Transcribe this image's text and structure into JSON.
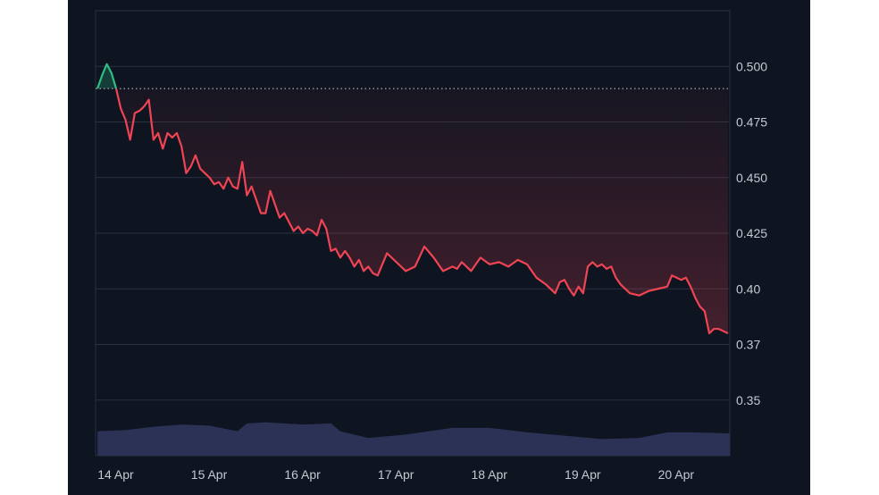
{
  "chart_data": {
    "type": "area",
    "title": "",
    "xlabel": "",
    "ylabel": "",
    "x_tick_labels": [
      "14 Apr",
      "15 Apr",
      "16 Apr",
      "17 Apr",
      "18 Apr",
      "19 Apr",
      "20 Apr"
    ],
    "y_tick_labels": [
      "0.500",
      "0.475",
      "0.450",
      "0.425",
      "0.40",
      "0.37",
      "0.35"
    ],
    "ylim": [
      0.325,
      0.525
    ],
    "x_range_days": [
      13.98,
      20.77
    ],
    "baseline_value": 0.49,
    "colors": {
      "up": "#2ebd85",
      "down": "#ef4454",
      "volume": "#2b3256",
      "grid": "#283142",
      "baseline": "#c9ced8",
      "background": "#0e1420"
    },
    "price_series": {
      "name": "",
      "x_days": [
        14.0,
        14.05,
        14.1,
        14.15,
        14.2,
        14.25,
        14.3,
        14.35,
        14.4,
        14.45,
        14.5,
        14.55,
        14.6,
        14.65,
        14.7,
        14.75,
        14.8,
        14.85,
        14.9,
        14.95,
        15.0,
        15.05,
        15.1,
        15.15,
        15.2,
        15.25,
        15.3,
        15.35,
        15.4,
        15.45,
        15.5,
        15.55,
        15.6,
        15.65,
        15.7,
        15.75,
        15.8,
        15.85,
        15.9,
        15.95,
        16.0,
        16.05,
        16.1,
        16.15,
        16.2,
        16.25,
        16.3,
        16.35,
        16.4,
        16.45,
        16.5,
        16.55,
        16.6,
        16.65,
        16.7,
        16.75,
        16.8,
        16.85,
        16.9,
        16.95,
        17.0,
        17.1,
        17.2,
        17.3,
        17.4,
        17.5,
        17.6,
        17.7,
        17.8,
        17.85,
        17.9,
        18.0,
        18.1,
        18.2,
        18.3,
        18.4,
        18.5,
        18.6,
        18.7,
        18.8,
        18.9,
        18.95,
        19.0,
        19.05,
        19.1,
        19.15,
        19.2,
        19.25,
        19.3,
        19.35,
        19.4,
        19.45,
        19.5,
        19.55,
        19.6,
        19.7,
        19.8,
        19.9,
        20.0,
        20.1,
        20.15,
        20.2,
        20.25,
        20.3,
        20.35,
        20.4,
        20.45,
        20.5,
        20.55,
        20.6,
        20.65,
        20.7,
        20.75
      ],
      "values": [
        0.49,
        0.496,
        0.501,
        0.497,
        0.49,
        0.481,
        0.476,
        0.467,
        0.479,
        0.48,
        0.482,
        0.485,
        0.467,
        0.47,
        0.463,
        0.47,
        0.468,
        0.47,
        0.464,
        0.452,
        0.455,
        0.46,
        0.454,
        0.452,
        0.45,
        0.447,
        0.448,
        0.445,
        0.45,
        0.446,
        0.445,
        0.457,
        0.442,
        0.446,
        0.44,
        0.434,
        0.434,
        0.444,
        0.438,
        0.432,
        0.434,
        0.43,
        0.426,
        0.428,
        0.425,
        0.427,
        0.426,
        0.424,
        0.431,
        0.427,
        0.417,
        0.418,
        0.414,
        0.417,
        0.414,
        0.41,
        0.413,
        0.408,
        0.41,
        0.407,
        0.406,
        0.416,
        0.412,
        0.408,
        0.41,
        0.419,
        0.414,
        0.408,
        0.41,
        0.409,
        0.412,
        0.408,
        0.414,
        0.411,
        0.412,
        0.41,
        0.413,
        0.411,
        0.405,
        0.402,
        0.398,
        0.403,
        0.404,
        0.4,
        0.397,
        0.401,
        0.398,
        0.41,
        0.412,
        0.41,
        0.411,
        0.409,
        0.41,
        0.405,
        0.402,
        0.398,
        0.397,
        0.399,
        0.4,
        0.401,
        0.406,
        0.405,
        0.404,
        0.405,
        0.401,
        0.396,
        0.392,
        0.39,
        0.38,
        0.382,
        0.382,
        0.381,
        0.38
      ]
    },
    "volume_series": {
      "name": "",
      "x_days": [
        14.0,
        14.3,
        14.6,
        14.9,
        15.2,
        15.5,
        15.6,
        15.8,
        16.2,
        16.5,
        16.6,
        16.9,
        17.3,
        17.8,
        18.2,
        18.6,
        19.0,
        19.4,
        19.8,
        20.1,
        20.4,
        20.77
      ],
      "values": [
        0.336,
        0.3365,
        0.338,
        0.339,
        0.3385,
        0.336,
        0.3395,
        0.34,
        0.339,
        0.3395,
        0.336,
        0.333,
        0.3345,
        0.3375,
        0.3375,
        0.3355,
        0.334,
        0.3325,
        0.333,
        0.3355,
        0.3355,
        0.335
      ]
    }
  }
}
